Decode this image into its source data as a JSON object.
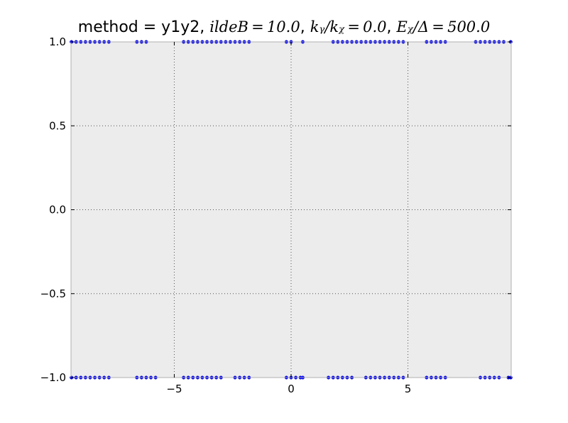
{
  "chart_data": {
    "type": "scatter",
    "title_prefix": "method = y1y2, ",
    "title_parts": [
      {
        "math": "ildeB = 10.0",
        "sep": ", "
      },
      {
        "math": "k_y/k_F = 0.0",
        "sep": ", "
      },
      {
        "math": "E_F/Δ = 500.0",
        "sep": ""
      }
    ],
    "title_display": [
      "ildeB = 10.0",
      "kᵧ/kᵪ = 0.0",
      "Eᵪ/Δ = 500.0"
    ],
    "xlim": [
      -9.42,
      9.42
    ],
    "ylim": [
      -1.0,
      1.0
    ],
    "x_ticks": [
      -5,
      0,
      5
    ],
    "x_tick_labels": [
      "−5",
      "0",
      "5"
    ],
    "y_ticks": [
      1.0,
      0.5,
      0.0,
      -0.5,
      -1.0
    ],
    "y_tick_labels": [
      "1.0",
      "0.5",
      "0.0",
      "−0.5",
      "−1.0"
    ],
    "grid": true,
    "colors": {
      "marker": "#0000ff",
      "axes_bg": "#ececec",
      "spine": "#b0b0b0",
      "grid": "#555555"
    },
    "series": [
      {
        "points": [
          [
            -9.4,
            1.0
          ],
          [
            -9.2,
            1.0
          ],
          [
            -9.0,
            1.0
          ],
          [
            -8.8,
            1.0
          ],
          [
            -8.6,
            1.0
          ],
          [
            -8.4,
            1.0
          ],
          [
            -8.2,
            1.0
          ],
          [
            -8.0,
            1.0
          ],
          [
            -7.8,
            1.0
          ],
          [
            -6.6,
            1.0
          ],
          [
            -6.4,
            1.0
          ],
          [
            -6.2,
            1.0
          ],
          [
            -4.6,
            1.0
          ],
          [
            -4.4,
            1.0
          ],
          [
            -4.2,
            1.0
          ],
          [
            -4.0,
            1.0
          ],
          [
            -3.8,
            1.0
          ],
          [
            -3.6,
            1.0
          ],
          [
            -3.4,
            1.0
          ],
          [
            -3.2,
            1.0
          ],
          [
            -3.0,
            1.0
          ],
          [
            -2.8,
            1.0
          ],
          [
            -2.6,
            1.0
          ],
          [
            -2.4,
            1.0
          ],
          [
            -2.2,
            1.0
          ],
          [
            -2.0,
            1.0
          ],
          [
            -1.8,
            1.0
          ],
          [
            -0.2,
            1.0
          ],
          [
            0.0,
            1.0
          ],
          [
            0.5,
            1.0
          ],
          [
            1.8,
            1.0
          ],
          [
            2.0,
            1.0
          ],
          [
            2.2,
            1.0
          ],
          [
            2.4,
            1.0
          ],
          [
            2.6,
            1.0
          ],
          [
            2.8,
            1.0
          ],
          [
            3.0,
            1.0
          ],
          [
            3.2,
            1.0
          ],
          [
            3.4,
            1.0
          ],
          [
            3.6,
            1.0
          ],
          [
            3.8,
            1.0
          ],
          [
            4.0,
            1.0
          ],
          [
            4.2,
            1.0
          ],
          [
            4.4,
            1.0
          ],
          [
            4.6,
            1.0
          ],
          [
            4.8,
            1.0
          ],
          [
            5.8,
            1.0
          ],
          [
            6.0,
            1.0
          ],
          [
            6.2,
            1.0
          ],
          [
            6.4,
            1.0
          ],
          [
            6.6,
            1.0
          ],
          [
            7.9,
            1.0
          ],
          [
            8.1,
            1.0
          ],
          [
            8.3,
            1.0
          ],
          [
            8.5,
            1.0
          ],
          [
            8.7,
            1.0
          ],
          [
            8.9,
            1.0
          ],
          [
            9.1,
            1.0
          ],
          [
            9.4,
            1.0
          ],
          [
            -9.4,
            -1.0
          ],
          [
            -9.2,
            -1.0
          ],
          [
            -9.0,
            -1.0
          ],
          [
            -8.8,
            -1.0
          ],
          [
            -8.6,
            -1.0
          ],
          [
            -8.4,
            -1.0
          ],
          [
            -8.2,
            -1.0
          ],
          [
            -8.0,
            -1.0
          ],
          [
            -7.8,
            -1.0
          ],
          [
            -6.6,
            -1.0
          ],
          [
            -6.4,
            -1.0
          ],
          [
            -6.2,
            -1.0
          ],
          [
            -6.0,
            -1.0
          ],
          [
            -5.8,
            -1.0
          ],
          [
            -4.6,
            -1.0
          ],
          [
            -4.4,
            -1.0
          ],
          [
            -4.2,
            -1.0
          ],
          [
            -4.0,
            -1.0
          ],
          [
            -3.8,
            -1.0
          ],
          [
            -3.6,
            -1.0
          ],
          [
            -3.4,
            -1.0
          ],
          [
            -3.2,
            -1.0
          ],
          [
            -3.0,
            -1.0
          ],
          [
            -2.4,
            -1.0
          ],
          [
            -2.2,
            -1.0
          ],
          [
            -2.0,
            -1.0
          ],
          [
            -1.8,
            -1.0
          ],
          [
            -0.2,
            -1.0
          ],
          [
            0.0,
            -1.0
          ],
          [
            0.2,
            -1.0
          ],
          [
            0.4,
            -1.0
          ],
          [
            0.5,
            -1.0
          ],
          [
            1.6,
            -1.0
          ],
          [
            1.8,
            -1.0
          ],
          [
            2.0,
            -1.0
          ],
          [
            2.2,
            -1.0
          ],
          [
            2.4,
            -1.0
          ],
          [
            2.6,
            -1.0
          ],
          [
            3.2,
            -1.0
          ],
          [
            3.4,
            -1.0
          ],
          [
            3.6,
            -1.0
          ],
          [
            3.8,
            -1.0
          ],
          [
            4.0,
            -1.0
          ],
          [
            4.2,
            -1.0
          ],
          [
            4.4,
            -1.0
          ],
          [
            4.6,
            -1.0
          ],
          [
            4.8,
            -1.0
          ],
          [
            5.8,
            -1.0
          ],
          [
            6.0,
            -1.0
          ],
          [
            6.2,
            -1.0
          ],
          [
            6.4,
            -1.0
          ],
          [
            6.6,
            -1.0
          ],
          [
            8.1,
            -1.0
          ],
          [
            8.3,
            -1.0
          ],
          [
            8.5,
            -1.0
          ],
          [
            8.7,
            -1.0
          ],
          [
            8.9,
            -1.0
          ],
          [
            9.3,
            -1.0
          ],
          [
            9.4,
            -1.0
          ]
        ]
      }
    ]
  }
}
